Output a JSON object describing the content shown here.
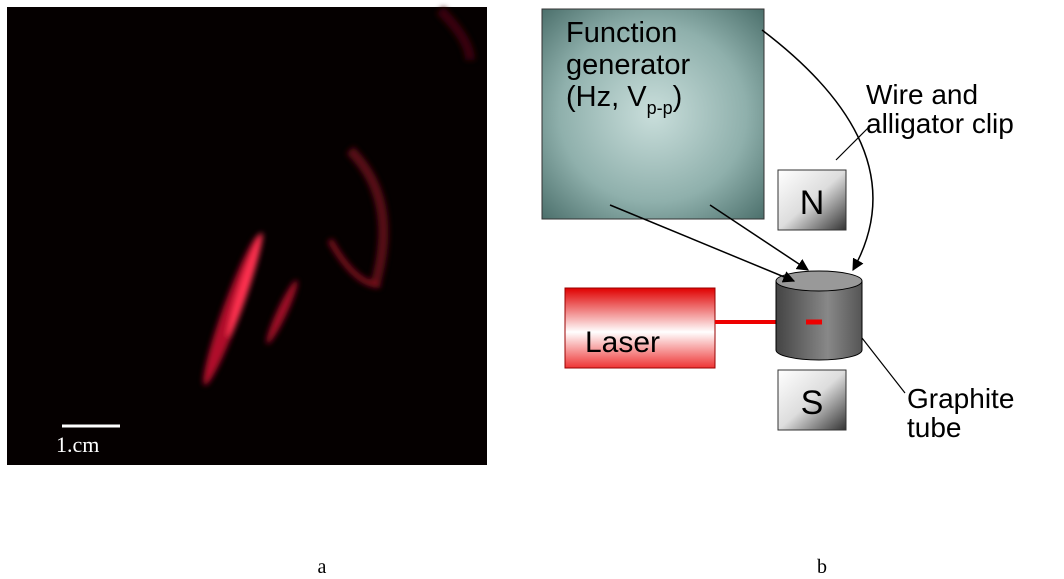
{
  "panel_a": {
    "scale_label": "1.cm",
    "caption": "a"
  },
  "panel_b": {
    "caption": "b",
    "function_generator": {
      "line1": "Function",
      "line2": "generator",
      "line3_main": "(Hz, V",
      "line3_sub": "p-p",
      "line3_end": ")"
    },
    "magnet_top": "N",
    "magnet_bottom": "S",
    "laser": "Laser",
    "wire_label": {
      "line1": "Wire and",
      "line2": "alligator clip"
    },
    "tube_label": {
      "line1": "Graphite",
      "line2": "tube"
    }
  }
}
